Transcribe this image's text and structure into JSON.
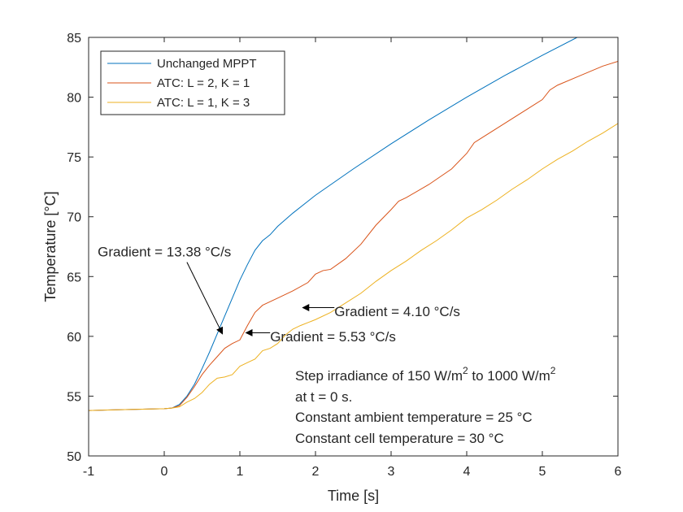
{
  "chart_data": {
    "type": "line",
    "title": "",
    "xlabel": "Time [s]",
    "ylabel": "Temperature [°C]",
    "xlim": [
      -1,
      6
    ],
    "ylim": [
      50,
      85
    ],
    "xticks": [
      -1,
      0,
      1,
      2,
      3,
      4,
      5,
      6
    ],
    "yticks": [
      50,
      55,
      60,
      65,
      70,
      75,
      80,
      85
    ],
    "xtick_labels": [
      "-1",
      "0",
      "1",
      "2",
      "3",
      "4",
      "5",
      "6"
    ],
    "ytick_labels": [
      "50",
      "55",
      "60",
      "65",
      "70",
      "75",
      "80",
      "85"
    ],
    "grid": false,
    "legend_position": "top-left",
    "series": [
      {
        "name": "Unchanged MPPT",
        "color": "#0072BD",
        "x": [
          -1,
          0,
          0.1,
          0.2,
          0.3,
          0.4,
          0.5,
          0.6,
          0.7,
          0.8,
          0.9,
          1.0,
          1.1,
          1.2,
          1.3,
          1.35,
          1.4,
          1.5,
          1.7,
          2.0,
          2.5,
          3.0,
          3.5,
          4.0,
          4.5,
          5.0,
          5.46
        ],
        "y": [
          53.8,
          53.95,
          54.0,
          54.3,
          55.0,
          56.0,
          57.3,
          58.7,
          60.2,
          61.7,
          63.2,
          64.7,
          66.0,
          67.2,
          68.0,
          68.25,
          68.5,
          69.2,
          70.3,
          71.8,
          74.0,
          76.1,
          78.1,
          80.0,
          81.8,
          83.5,
          85.0
        ]
      },
      {
        "name": "ATC: L = 2, K = 1",
        "color": "#D95319",
        "x": [
          -1,
          0,
          0.1,
          0.2,
          0.3,
          0.4,
          0.5,
          0.6,
          0.7,
          0.8,
          0.9,
          1.0,
          1.1,
          1.2,
          1.3,
          1.4,
          1.5,
          1.7,
          1.9,
          2.0,
          2.1,
          2.2,
          2.4,
          2.6,
          2.8,
          3.0,
          3.1,
          3.2,
          3.5,
          3.8,
          4.0,
          4.1,
          4.2,
          4.5,
          4.8,
          5.0,
          5.1,
          5.2,
          5.5,
          5.8,
          6.0
        ],
        "y": [
          53.8,
          53.95,
          54.0,
          54.2,
          54.9,
          55.8,
          56.8,
          57.6,
          58.3,
          59.0,
          59.4,
          59.7,
          60.9,
          62.0,
          62.6,
          62.9,
          63.2,
          63.8,
          64.5,
          65.2,
          65.5,
          65.6,
          66.5,
          67.7,
          69.3,
          70.6,
          71.3,
          71.6,
          72.7,
          74.0,
          75.3,
          76.2,
          76.6,
          77.8,
          79.0,
          79.8,
          80.6,
          81.0,
          81.8,
          82.6,
          83.0
        ]
      },
      {
        "name": "ATC: L = 1, K = 3",
        "color": "#EDB120",
        "x": [
          -1,
          0,
          0.1,
          0.2,
          0.3,
          0.4,
          0.5,
          0.6,
          0.7,
          0.8,
          0.9,
          1.0,
          1.1,
          1.2,
          1.3,
          1.4,
          1.5,
          1.6,
          1.7,
          1.8,
          2.0,
          2.2,
          2.4,
          2.6,
          2.8,
          3.0,
          3.2,
          3.4,
          3.6,
          3.8,
          4.0,
          4.2,
          4.4,
          4.6,
          4.8,
          5.0,
          5.2,
          5.4,
          5.6,
          5.8,
          6.0
        ],
        "y": [
          53.8,
          53.95,
          54.0,
          54.1,
          54.5,
          54.8,
          55.3,
          56.0,
          56.5,
          56.6,
          56.8,
          57.5,
          57.8,
          58.1,
          58.8,
          59.0,
          59.4,
          60.1,
          60.6,
          60.9,
          61.4,
          62.0,
          62.8,
          63.6,
          64.6,
          65.5,
          66.3,
          67.2,
          68.0,
          68.9,
          69.9,
          70.6,
          71.4,
          72.3,
          73.1,
          74.0,
          74.8,
          75.5,
          76.3,
          77.0,
          77.8
        ]
      }
    ],
    "annotations": [
      {
        "text": "Gradient = 13.38 °C/s",
        "text_x": -0.88,
        "text_y": 67.1,
        "arrow_from": [
          0.3,
          66.2
        ],
        "arrow_to": [
          0.77,
          60.2
        ]
      },
      {
        "text": "Gradient = 5.53 °C/s",
        "text_x": 1.4,
        "text_y": 60.0,
        "arrow_from": [
          1.4,
          60.3
        ],
        "arrow_to": [
          1.08,
          60.3
        ]
      },
      {
        "text": "Gradient = 4.10 °C/s",
        "text_x": 2.25,
        "text_y": 62.1,
        "arrow_from": [
          2.25,
          62.4
        ],
        "arrow_to": [
          1.83,
          62.4
        ]
      }
    ],
    "note": {
      "line1_prefix": "Step irradiance of 150 W/m",
      "line1_sup1": "2",
      "line1_mid": " to 1000 W/m",
      "line1_sup2": "2",
      "line2": "at t = 0 s.",
      "line3": "Constant ambient temperature = 25 °C",
      "line4": "Constant cell temperature = 30 °C"
    }
  }
}
